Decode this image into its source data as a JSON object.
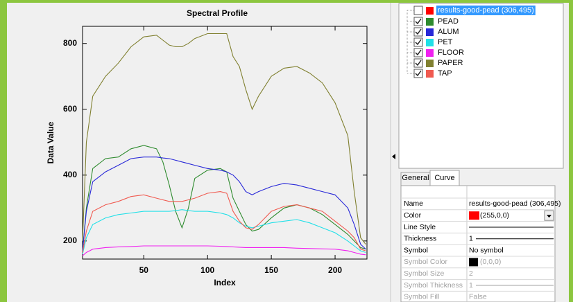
{
  "chart_data": {
    "type": "line",
    "title": "Spectral Profile",
    "x_label": "Index",
    "y_label": "Data Value",
    "x": [
      2,
      5,
      10,
      20,
      30,
      40,
      50,
      60,
      65,
      70,
      75,
      80,
      85,
      90,
      100,
      110,
      115,
      120,
      125,
      130,
      135,
      140,
      150,
      160,
      170,
      180,
      190,
      200,
      210,
      215,
      220,
      224
    ],
    "series": [
      {
        "name": "PEAD",
        "color": "#2e8b2e",
        "values": [
          170,
          300,
          420,
          450,
          455,
          480,
          490,
          480,
          440,
          370,
          290,
          240,
          300,
          390,
          415,
          420,
          410,
          330,
          290,
          250,
          230,
          235,
          270,
          300,
          310,
          300,
          280,
          250,
          220,
          200,
          180,
          175
        ]
      },
      {
        "name": "ALUM",
        "color": "#2828d8",
        "values": [
          170,
          290,
          380,
          410,
          430,
          450,
          455,
          455,
          452,
          450,
          445,
          440,
          435,
          430,
          420,
          415,
          410,
          400,
          380,
          350,
          340,
          350,
          365,
          375,
          370,
          360,
          350,
          340,
          300,
          250,
          190,
          175
        ]
      },
      {
        "name": "PET",
        "color": "#20e0e8",
        "values": [
          160,
          210,
          250,
          270,
          280,
          285,
          290,
          290,
          290,
          290,
          292,
          295,
          292,
          290,
          290,
          285,
          280,
          270,
          255,
          245,
          240,
          245,
          255,
          260,
          265,
          255,
          240,
          225,
          200,
          185,
          170,
          165
        ]
      },
      {
        "name": "FLOOR",
        "color": "#f020f0",
        "values": [
          155,
          165,
          175,
          180,
          182,
          183,
          185,
          185,
          185,
          185,
          185,
          185,
          185,
          185,
          185,
          184,
          183,
          182,
          181,
          180,
          180,
          180,
          180,
          180,
          178,
          177,
          176,
          175,
          170,
          165,
          160,
          158
        ]
      },
      {
        "name": "PAPER",
        "color": "#808030",
        "values": [
          200,
          500,
          640,
          700,
          740,
          790,
          820,
          825,
          810,
          795,
          790,
          790,
          800,
          815,
          830,
          830,
          830,
          760,
          730,
          660,
          600,
          640,
          700,
          725,
          730,
          710,
          680,
          620,
          520,
          350,
          210,
          190
        ]
      },
      {
        "name": "TAP",
        "color": "#f05a50",
        "values": [
          165,
          230,
          290,
          310,
          320,
          335,
          340,
          330,
          325,
          320,
          320,
          320,
          325,
          330,
          345,
          350,
          345,
          290,
          260,
          240,
          235,
          250,
          290,
          305,
          310,
          300,
          290,
          260,
          230,
          210,
          175,
          170
        ]
      }
    ],
    "xlim": [
      2,
      225
    ],
    "ylim": [
      145,
      852
    ],
    "xticks": [
      50,
      100,
      150,
      200
    ],
    "yticks": [
      200,
      400,
      600,
      800
    ]
  },
  "panel": {
    "tree_selected": {
      "label": "results-good-pead (306,495)",
      "color": "#ff0000",
      "checked": false
    },
    "tabs": [
      "General",
      "Curve"
    ],
    "active_tab": 1,
    "properties": [
      {
        "name": "Name",
        "value": "results-good-pead (306,495)",
        "disabled": false
      },
      {
        "name": "Color",
        "value": "(255,0,0)",
        "swatch": "#ff0000",
        "disabled": false
      },
      {
        "name": "Line Style",
        "line": true,
        "disabled": false
      },
      {
        "name": "Thickness",
        "value": "1",
        "line": true,
        "disabled": false
      },
      {
        "name": "Symbol",
        "value": "No symbol",
        "disabled": false
      },
      {
        "name": "Symbol Color",
        "value": "(0,0,0)",
        "swatch": "#000000",
        "disabled": true
      },
      {
        "name": "Symbol Size",
        "value": "2",
        "disabled": true
      },
      {
        "name": "Symbol Thickness",
        "value": "1",
        "line": true,
        "disabled": true
      },
      {
        "name": "Symbol Fill",
        "value": "False",
        "disabled": true
      }
    ]
  }
}
